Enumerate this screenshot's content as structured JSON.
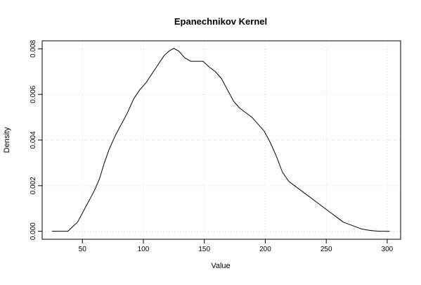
{
  "chart_data": {
    "type": "line",
    "title": "Epanechnikov Kernel",
    "xlabel": "Value",
    "ylabel": "Density",
    "xlim": [
      17,
      311
    ],
    "ylim": [
      -0.00035,
      0.00835
    ],
    "x_ticks": [
      50,
      100,
      150,
      200,
      250,
      300
    ],
    "y_ticks": [
      0.0,
      0.002,
      0.004,
      0.006,
      0.008
    ],
    "x_tick_labels": [
      "50",
      "100",
      "150",
      "200",
      "250",
      "300"
    ],
    "y_tick_labels": [
      "0.000",
      "0.002",
      "0.004",
      "0.006",
      "0.008"
    ],
    "grid": true,
    "series": [
      {
        "color": "#000000",
        "points": [
          [
            25,
            0.0
          ],
          [
            30,
            0.0
          ],
          [
            36,
            0.0
          ],
          [
            38,
            0.0
          ],
          [
            42,
            0.0002
          ],
          [
            46,
            0.0004
          ],
          [
            50,
            0.0008
          ],
          [
            55,
            0.0013
          ],
          [
            60,
            0.0018
          ],
          [
            64,
            0.0023
          ],
          [
            68,
            0.003
          ],
          [
            72,
            0.0036
          ],
          [
            77,
            0.0042
          ],
          [
            82,
            0.0047
          ],
          [
            87,
            0.0052
          ],
          [
            92,
            0.0058
          ],
          [
            97,
            0.0062
          ],
          [
            102,
            0.0065
          ],
          [
            107,
            0.0069
          ],
          [
            112,
            0.0073
          ],
          [
            117,
            0.0077
          ],
          [
            121,
            0.0079
          ],
          [
            125,
            0.00802
          ],
          [
            129,
            0.0079
          ],
          [
            134,
            0.0076
          ],
          [
            139,
            0.00745
          ],
          [
            144,
            0.00745
          ],
          [
            149,
            0.00745
          ],
          [
            154,
            0.0072
          ],
          [
            159,
            0.007
          ],
          [
            164,
            0.0067
          ],
          [
            169,
            0.0062
          ],
          [
            174,
            0.0057
          ],
          [
            179,
            0.0054
          ],
          [
            184,
            0.0052
          ],
          [
            189,
            0.005
          ],
          [
            194,
            0.0047
          ],
          [
            199,
            0.0044
          ],
          [
            204,
            0.0039
          ],
          [
            209,
            0.0033
          ],
          [
            214,
            0.0026
          ],
          [
            219,
            0.0022
          ],
          [
            224,
            0.002
          ],
          [
            229,
            0.0018
          ],
          [
            234,
            0.0016
          ],
          [
            239,
            0.0014
          ],
          [
            244,
            0.0012
          ],
          [
            249,
            0.001
          ],
          [
            254,
            0.0008
          ],
          [
            259,
            0.0006
          ],
          [
            264,
            0.0004
          ],
          [
            269,
            0.0003
          ],
          [
            274,
            0.0002
          ],
          [
            279,
            0.0001
          ],
          [
            284,
            5e-05
          ],
          [
            289,
            2e-05
          ],
          [
            294,
            0.0
          ],
          [
            302,
            0.0
          ]
        ]
      }
    ]
  }
}
